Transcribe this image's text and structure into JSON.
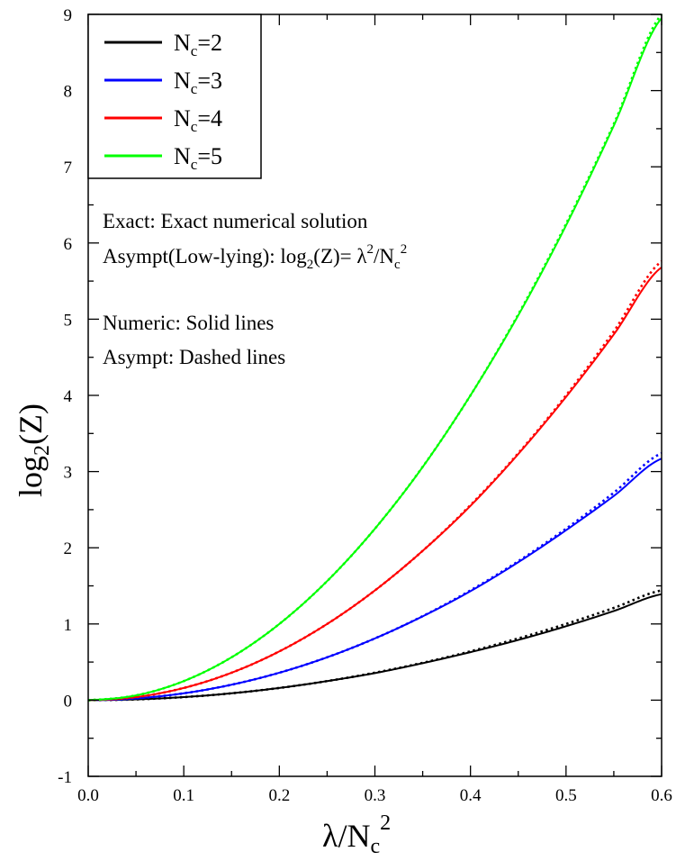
{
  "chart_data": {
    "type": "line",
    "xlabel": {
      "main": "λ/N",
      "sub": "c",
      "sup": "2"
    },
    "ylabel": {
      "pre": "log",
      "sub": "2",
      "post": "(Z)"
    },
    "xlim": [
      0.0,
      0.6
    ],
    "ylim": [
      -1,
      9
    ],
    "xticks": [
      "0.0",
      "0.1",
      "0.2",
      "0.3",
      "0.4",
      "0.5",
      "0.6"
    ],
    "yticks": [
      "-1",
      "0",
      "1",
      "2",
      "3",
      "4",
      "5",
      "6",
      "7",
      "8",
      "9"
    ],
    "grid": false,
    "legend_position": "top-left",
    "x": [
      0.0,
      0.05,
      0.1,
      0.15,
      0.2,
      0.25,
      0.3,
      0.35,
      0.4,
      0.45,
      0.5,
      0.55,
      0.6
    ],
    "series": [
      {
        "name": "N=2",
        "label_main": "N",
        "label_sub": "c",
        "label_post": "=2",
        "color": "#000000",
        "numeric": [
          0.0,
          0.01,
          0.04,
          0.09,
          0.16,
          0.25,
          0.355,
          0.485,
          0.63,
          0.79,
          0.97,
          1.17,
          1.39
        ],
        "asympt": [
          0.0,
          0.01,
          0.04,
          0.09,
          0.16,
          0.25,
          0.36,
          0.49,
          0.64,
          0.81,
          1.0,
          1.21,
          1.44
        ]
      },
      {
        "name": "N=3",
        "label_main": "N",
        "label_sub": "c",
        "label_post": "=3",
        "color": "#0000ff",
        "numeric": [
          0.0,
          0.0225,
          0.09,
          0.2025,
          0.36,
          0.5625,
          0.81,
          1.1,
          1.43,
          1.81,
          2.23,
          2.68,
          3.17
        ],
        "asympt": [
          0.0,
          0.0225,
          0.09,
          0.2025,
          0.36,
          0.5625,
          0.81,
          1.1025,
          1.44,
          1.8225,
          2.25,
          2.7225,
          3.24
        ]
      },
      {
        "name": "N=4",
        "label_main": "N",
        "label_sub": "c",
        "label_post": "=4",
        "color": "#ff0000",
        "numeric": [
          0.0,
          0.04,
          0.16,
          0.36,
          0.64,
          1.0,
          1.44,
          1.96,
          2.55,
          3.23,
          3.98,
          4.8,
          5.68
        ],
        "asympt": [
          0.0,
          0.04,
          0.16,
          0.36,
          0.64,
          1.0,
          1.44,
          1.96,
          2.56,
          3.24,
          4.0,
          4.84,
          5.76
        ]
      },
      {
        "name": "N=5",
        "label_main": "N",
        "label_sub": "c",
        "label_post": "=5",
        "color": "#00ff00",
        "numeric": [
          0.0,
          0.0625,
          0.25,
          0.5625,
          1.0,
          1.5625,
          2.25,
          3.06,
          4.0,
          5.05,
          6.23,
          7.54,
          8.95
        ],
        "asympt": [
          0.0,
          0.0625,
          0.25,
          0.5625,
          1.0,
          1.5625,
          2.25,
          3.0625,
          4.0,
          5.0625,
          6.25,
          7.5625,
          9.0
        ]
      }
    ],
    "annotations": {
      "line1": "Exact: Exact numerical solution",
      "line2": {
        "pre": "Asympt(Low-lying): log",
        "sub2": "2",
        "mid": "(Z)= λ",
        "sup1": "2",
        "slash": "/N",
        "sub3": "c",
        "sup2": "2"
      },
      "line3": "Numeric: Solid lines",
      "line4": "Asympt: Dashed lines"
    }
  }
}
